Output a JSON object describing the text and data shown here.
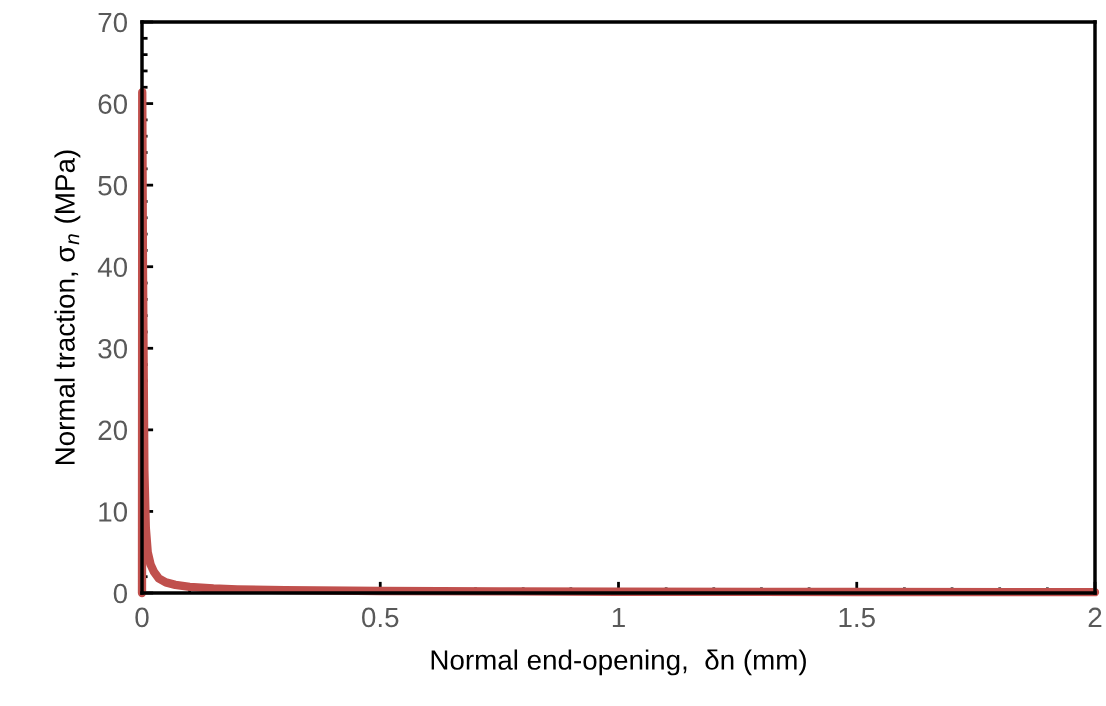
{
  "chart_data": {
    "type": "line",
    "xlabel": "Normal end-opening,  δn (mm)",
    "ylabel": "Normal traction, σ$_{n}$ (MPa)",
    "x": [
      0,
      0.0005,
      0.002,
      0.005,
      0.008,
      0.012,
      0.018,
      0.025,
      0.035,
      0.05,
      0.07,
      0.1,
      0.15,
      0.2,
      0.3,
      0.5,
      0.75,
      1,
      1.5,
      2
    ],
    "series": [
      {
        "color": "#c0504d",
        "values": [
          0,
          61.4,
          40,
          15,
          8,
          5,
          3.5,
          2.6,
          1.8,
          1.3,
          1.0,
          0.75,
          0.55,
          0.45,
          0.35,
          0.25,
          0.2,
          0.15,
          0.12,
          0.1
        ]
      }
    ],
    "xlim": [
      0,
      2
    ],
    "xticks": [
      0,
      0.5,
      1,
      1.5,
      2
    ],
    "ylim": [
      0,
      70
    ],
    "yticks": [
      0,
      10,
      20,
      30,
      40,
      50,
      60,
      70
    ],
    "grid": false,
    "legend": false,
    "marker": "none",
    "line_style": "solid"
  }
}
